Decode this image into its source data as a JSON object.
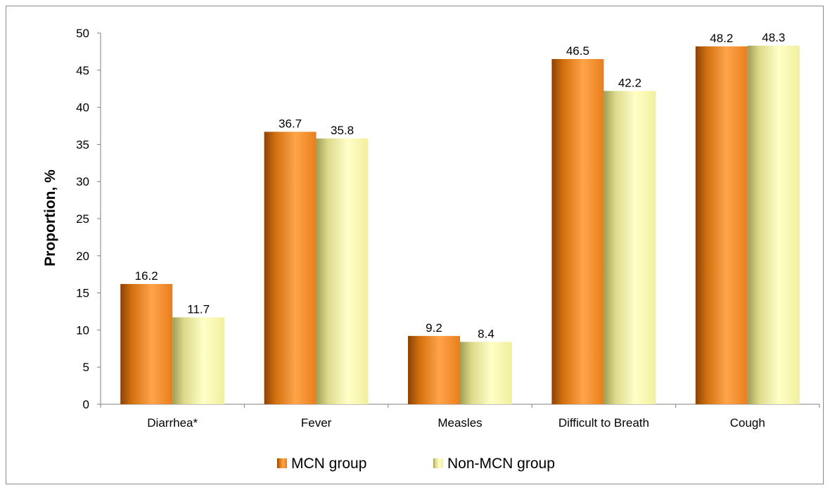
{
  "chart_data": {
    "type": "bar",
    "title": "",
    "xlabel": "",
    "ylabel": "Proportion, %",
    "ylim": [
      0,
      50
    ],
    "yticks": [
      0,
      5,
      10,
      15,
      20,
      25,
      30,
      35,
      40,
      45,
      50
    ],
    "categories": [
      "Diarrhea*",
      "Fever",
      "Measles",
      "Difficult to Breath",
      "Cough"
    ],
    "series": [
      {
        "name": "MCN group",
        "values": [
          16.2,
          36.7,
          9.2,
          46.5,
          48.2
        ],
        "color": "#f28a1e",
        "label_text": [
          "16.2",
          "36.7",
          "9.2",
          "46.5",
          "48.2"
        ]
      },
      {
        "name": "Non-MCN group",
        "values": [
          11.7,
          35.8,
          8.4,
          42.2,
          48.3
        ],
        "color": "#f6f3a0",
        "label_text": [
          "11.7",
          "35.8",
          "8.4",
          "42.2",
          "48.3"
        ]
      }
    ],
    "grid": false,
    "legend_position": "bottom"
  }
}
